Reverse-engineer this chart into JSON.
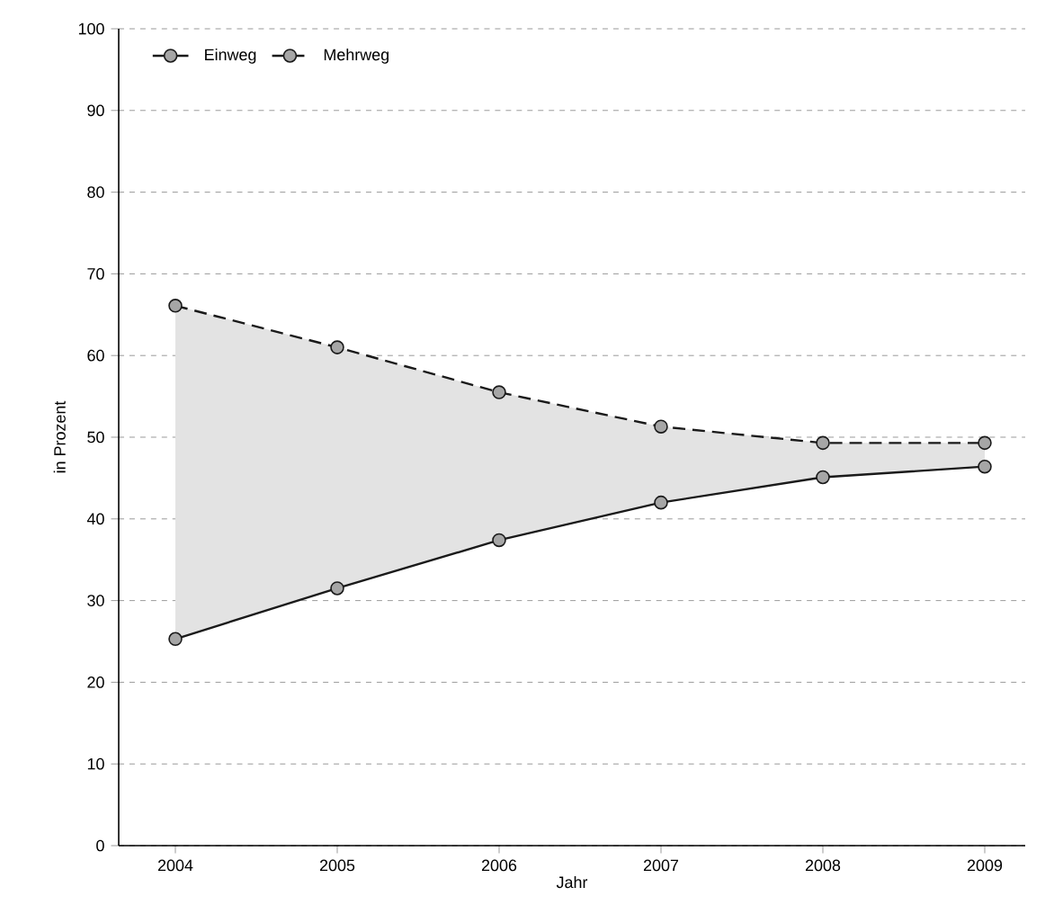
{
  "chart_data": {
    "type": "line",
    "xlabel": "Jahr",
    "ylabel": "in Prozent",
    "categories": [
      "2004",
      "2005",
      "2006",
      "2007",
      "2008",
      "2009"
    ],
    "series": [
      {
        "name": "Einweg",
        "color": "#1a1a1a",
        "line_style": "solid",
        "values": [
          25.3,
          31.5,
          37.4,
          42,
          45.1,
          46.4
        ]
      },
      {
        "name": "Mehrweg",
        "color": "#1a1a1a",
        "line_style": "dashed",
        "values": [
          66.1,
          61,
          55.5,
          51.3,
          49.3,
          49.3
        ],
        "lower": [
          25.3,
          31.5,
          37.4,
          42,
          45.1,
          46.4
        ],
        "upper": [
          66.1,
          61,
          55.5,
          51.3,
          49.3,
          49.3
        ]
      }
    ],
    "ylim": [
      0,
      100
    ],
    "yticks": [
      0,
      10,
      20,
      30,
      40,
      50,
      60,
      70,
      80,
      90,
      100
    ],
    "grid": "y",
    "legend": "top left",
    "marker": "circle"
  }
}
